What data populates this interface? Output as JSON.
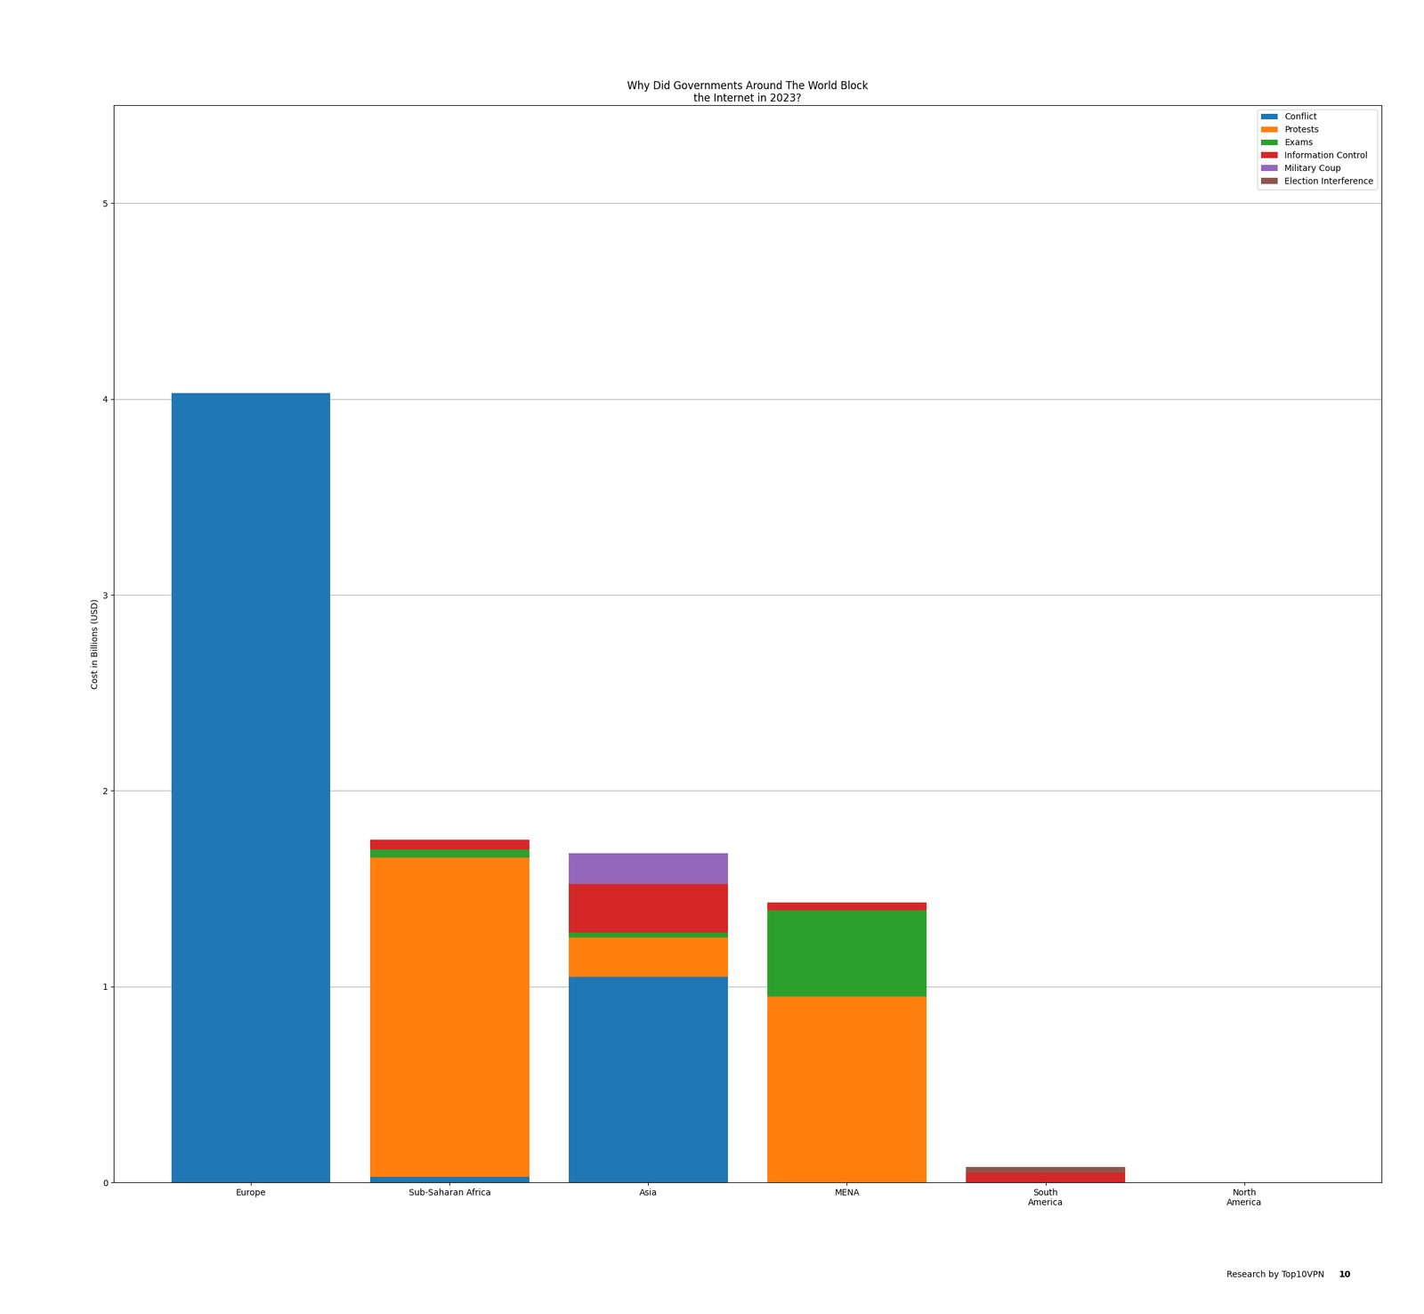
{
  "chart_data": {
    "type": "bar",
    "title": "Why Did Governments Around The World Block\nthe Internet in 2023?",
    "ylabel": "Cost in Billions (USD)",
    "categories": [
      "Europe",
      "Sub-Saharan Africa",
      "Asia",
      "MENA",
      "South\nAmerica",
      "North\nAmerica"
    ],
    "series": [
      {
        "name": "Conflict",
        "values": [
          4.03,
          0.03,
          1.05,
          0.0,
          0.0,
          0.0
        ]
      },
      {
        "name": "Protests",
        "values": [
          0.0,
          1.63,
          0.2,
          0.95,
          0.0,
          0.0
        ]
      },
      {
        "name": "Exams",
        "values": [
          0.0,
          0.04,
          0.025,
          0.44,
          0.0,
          0.0
        ]
      },
      {
        "name": "Information Control",
        "values": [
          0.0,
          0.05,
          0.25,
          0.04,
          0.05,
          0.0
        ]
      },
      {
        "name": "Military Coup",
        "values": [
          0.0,
          0.0,
          0.155,
          0.0,
          0.0,
          0.0
        ]
      },
      {
        "name": "Election Interference",
        "values": [
          0.0,
          0.0,
          0.0,
          0.0,
          0.03,
          0.0
        ]
      }
    ],
    "stacked": true,
    "ylim": [
      0,
      5.5
    ],
    "yticks": [
      0,
      1,
      2,
      3,
      4,
      5
    ],
    "grid": true,
    "legend": "upper right",
    "annotations": [
      "Research by Top10VPN",
      "10"
    ]
  }
}
